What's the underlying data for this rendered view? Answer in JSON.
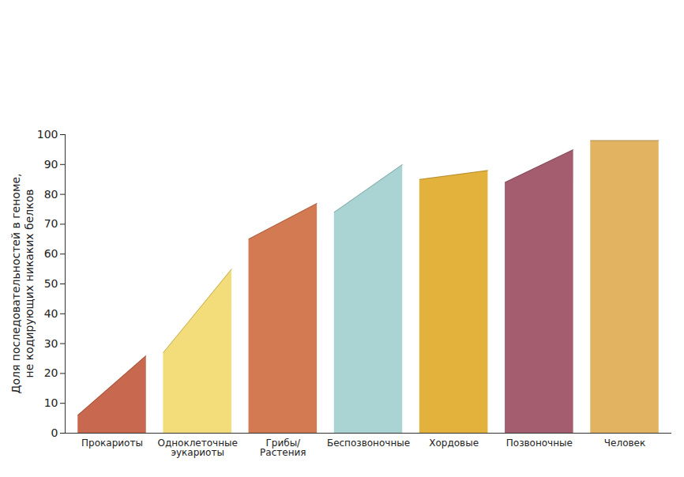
{
  "chart_data": {
    "type": "bar",
    "y_label": "Доля последовательностей в геноме, не кодирующих никаких белков",
    "categories": [
      "Прокариоты",
      "Одноклеточные эукариоты",
      "Грибы/Растения",
      "Беспозвоночные",
      "Хордовые",
      "Позвоночные",
      "Человек"
    ],
    "values": [
      26,
      55,
      77,
      90,
      88,
      95,
      98
    ],
    "start_values": [
      6,
      27,
      65,
      74,
      85,
      84,
      98
    ],
    "colors": [
      "#c8694f",
      "#f3dd7a",
      "#d47a53",
      "#a9d4d3",
      "#e3b23c",
      "#a35d6e",
      "#e2b462"
    ],
    "ylim": [
      0,
      100
    ],
    "yticks": [
      0,
      10,
      20,
      30,
      40,
      50,
      60,
      70,
      80,
      90,
      100
    ],
    "grid": false
  }
}
